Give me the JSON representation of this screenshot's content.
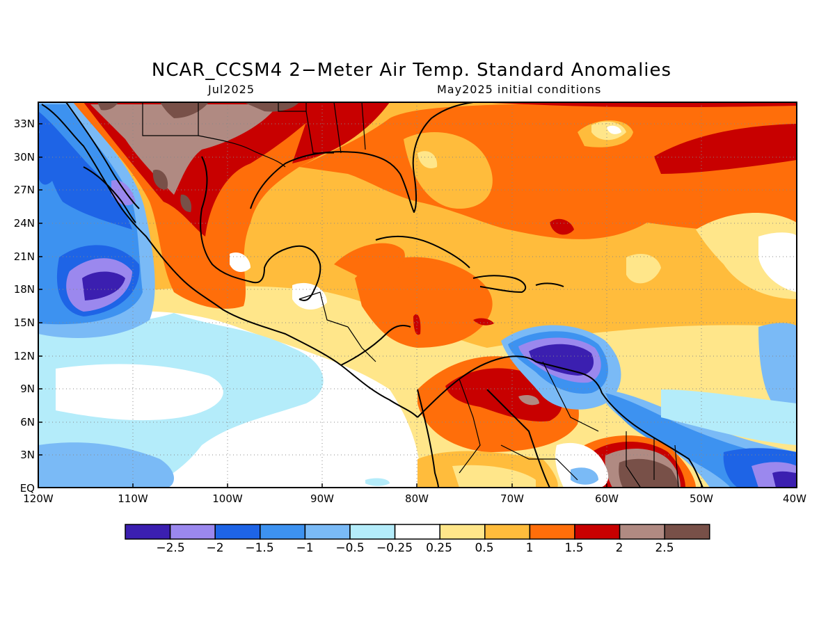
{
  "title": "NCAR_CCSM4 2−Meter Air Temp. Standard Anomalies",
  "subtitle_left": "Jul2025",
  "subtitle_right": "May2025 initial conditions",
  "map": {
    "lat_labels": [
      "33N",
      "30N",
      "27N",
      "24N",
      "21N",
      "18N",
      "15N",
      "12N",
      "9N",
      "6N",
      "3N",
      "EQ"
    ],
    "lon_labels": [
      "120W",
      "110W",
      "100W",
      "90W",
      "80W",
      "70W",
      "60W",
      "50W",
      "40W"
    ],
    "grid": "dotted"
  },
  "colorbar": {
    "colors": [
      "#3b1fb0",
      "#9b88ee",
      "#1e64e6",
      "#3d92f0",
      "#7abaf6",
      "#b4ecfa",
      "#ffffff",
      "#ffe68a",
      "#ffbc3c",
      "#ff6e0a",
      "#c80000",
      "#b08a82",
      "#785048"
    ],
    "labels": [
      "−2.5",
      "−2",
      "−1.5",
      "−1",
      "−0.5",
      "−0.25",
      "0.25",
      "0.5",
      "1",
      "1.5",
      "2",
      "2.5"
    ]
  }
}
